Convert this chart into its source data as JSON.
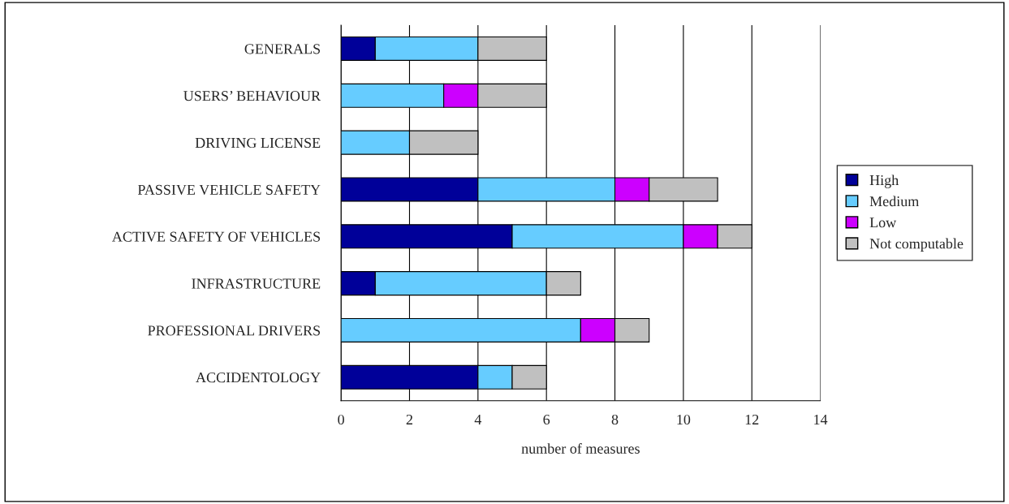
{
  "chart_data": {
    "type": "bar",
    "orientation": "horizontal",
    "stacked": true,
    "xlabel": "number of measures",
    "categories": [
      "GENERALS",
      "USERS’ BEHAVIOUR",
      "DRIVING LICENSE",
      "PASSIVE VEHICLE SAFETY",
      "ACTIVE SAFETY OF VEHICLES",
      "INFRASTRUCTURE",
      "PROFESSIONAL DRIVERS",
      "ACCIDENTOLOGY"
    ],
    "series": [
      {
        "name": "High",
        "color": "#000099",
        "values": [
          1,
          0,
          0,
          4,
          5,
          1,
          0,
          4
        ]
      },
      {
        "name": "Medium",
        "color": "#66ccff",
        "values": [
          3,
          3,
          2,
          4,
          5,
          5,
          7,
          1
        ]
      },
      {
        "name": "Low",
        "color": "#cc00ff",
        "values": [
          0,
          1,
          0,
          1,
          1,
          0,
          1,
          0
        ]
      },
      {
        "name": "Not computable",
        "color": "#c0c0c0",
        "values": [
          2,
          2,
          2,
          2,
          1,
          1,
          1,
          1
        ]
      }
    ],
    "xlim": [
      0,
      14
    ],
    "xticks": [
      0,
      2,
      4,
      6,
      8,
      10,
      12,
      14
    ],
    "grid": "x",
    "legend": "right"
  }
}
